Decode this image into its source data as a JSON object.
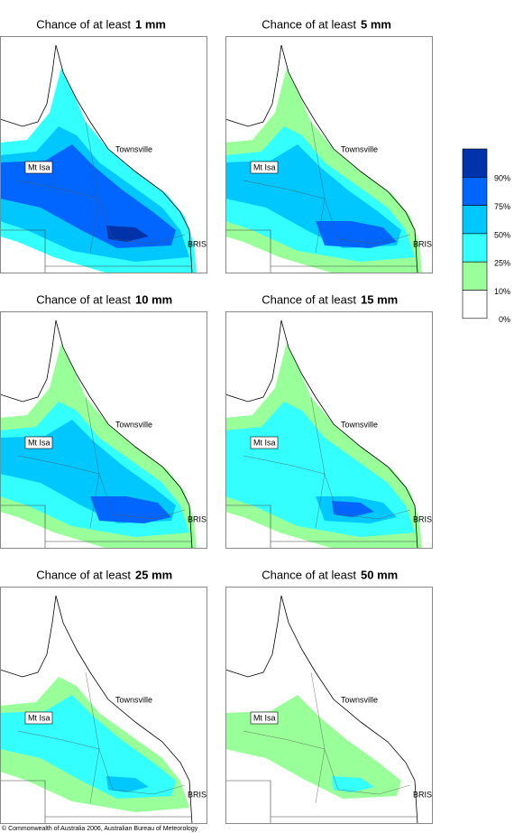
{
  "panels": [
    {
      "title_prefix": "Chance of at least",
      "amount": "1 mm"
    },
    {
      "title_prefix": "Chance of at least",
      "amount": "5 mm"
    },
    {
      "title_prefix": "Chance of at least",
      "amount": "10 mm"
    },
    {
      "title_prefix": "Chance of at least",
      "amount": "15 mm"
    },
    {
      "title_prefix": "Chance of at least",
      "amount": "25 mm"
    },
    {
      "title_prefix": "Chance of at least",
      "amount": "50 mm"
    }
  ],
  "places": [
    "Townsville",
    "Mt Isa",
    "BRIS"
  ],
  "legend": {
    "items": [
      {
        "label": "90%",
        "color": "#0033aa"
      },
      {
        "label": "75%",
        "color": "#0066ff"
      },
      {
        "label": "50%",
        "color": "#00c8ff"
      },
      {
        "label": "25%",
        "color": "#33ffff"
      },
      {
        "label": "10%",
        "color": "#99ff99"
      },
      {
        "label": "0%",
        "color": "#ffffff"
      }
    ]
  },
  "footer": "© Commonwealth of Australia 2006, Australian Bureau of Meteorology"
}
